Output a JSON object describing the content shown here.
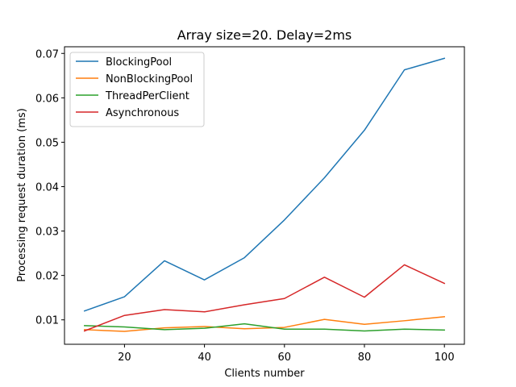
{
  "chart_data": {
    "type": "line",
    "title": "Array size=20. Delay=2ms",
    "xlabel": "Clients number",
    "ylabel": "Processing request duration (ms)",
    "xlim": [
      5,
      105
    ],
    "ylim": [
      0.0045,
      0.0715
    ],
    "xticks": [
      20,
      40,
      60,
      80,
      100
    ],
    "yticks": [
      0.01,
      0.02,
      0.03,
      0.04,
      0.05,
      0.06,
      0.07
    ],
    "ytick_labels": [
      "0.01",
      "0.02",
      "0.03",
      "0.04",
      "0.05",
      "0.06",
      "0.07"
    ],
    "grid": false,
    "legend_position": "top-left",
    "x": [
      10,
      20,
      30,
      40,
      50,
      60,
      70,
      80,
      90,
      100
    ],
    "series": [
      {
        "name": "BlockingPool",
        "color": "#1f77b4",
        "values": [
          0.012,
          0.0152,
          0.0233,
          0.019,
          0.024,
          0.0325,
          0.042,
          0.0527,
          0.0663,
          0.0689
        ]
      },
      {
        "name": "NonBlockingPool",
        "color": "#ff7f0e",
        "values": [
          0.0078,
          0.0074,
          0.0082,
          0.0085,
          0.008,
          0.0083,
          0.0101,
          0.009,
          0.0098,
          0.0107
        ]
      },
      {
        "name": "ThreadPerClient",
        "color": "#2ca02c",
        "values": [
          0.0087,
          0.0084,
          0.0078,
          0.0081,
          0.0091,
          0.0079,
          0.0079,
          0.0075,
          0.0079,
          0.0077
        ]
      },
      {
        "name": "Asynchronous",
        "color": "#d62728",
        "values": [
          0.0075,
          0.011,
          0.0123,
          0.0118,
          0.0134,
          0.0148,
          0.0196,
          0.0151,
          0.0224,
          0.0182
        ]
      }
    ]
  }
}
